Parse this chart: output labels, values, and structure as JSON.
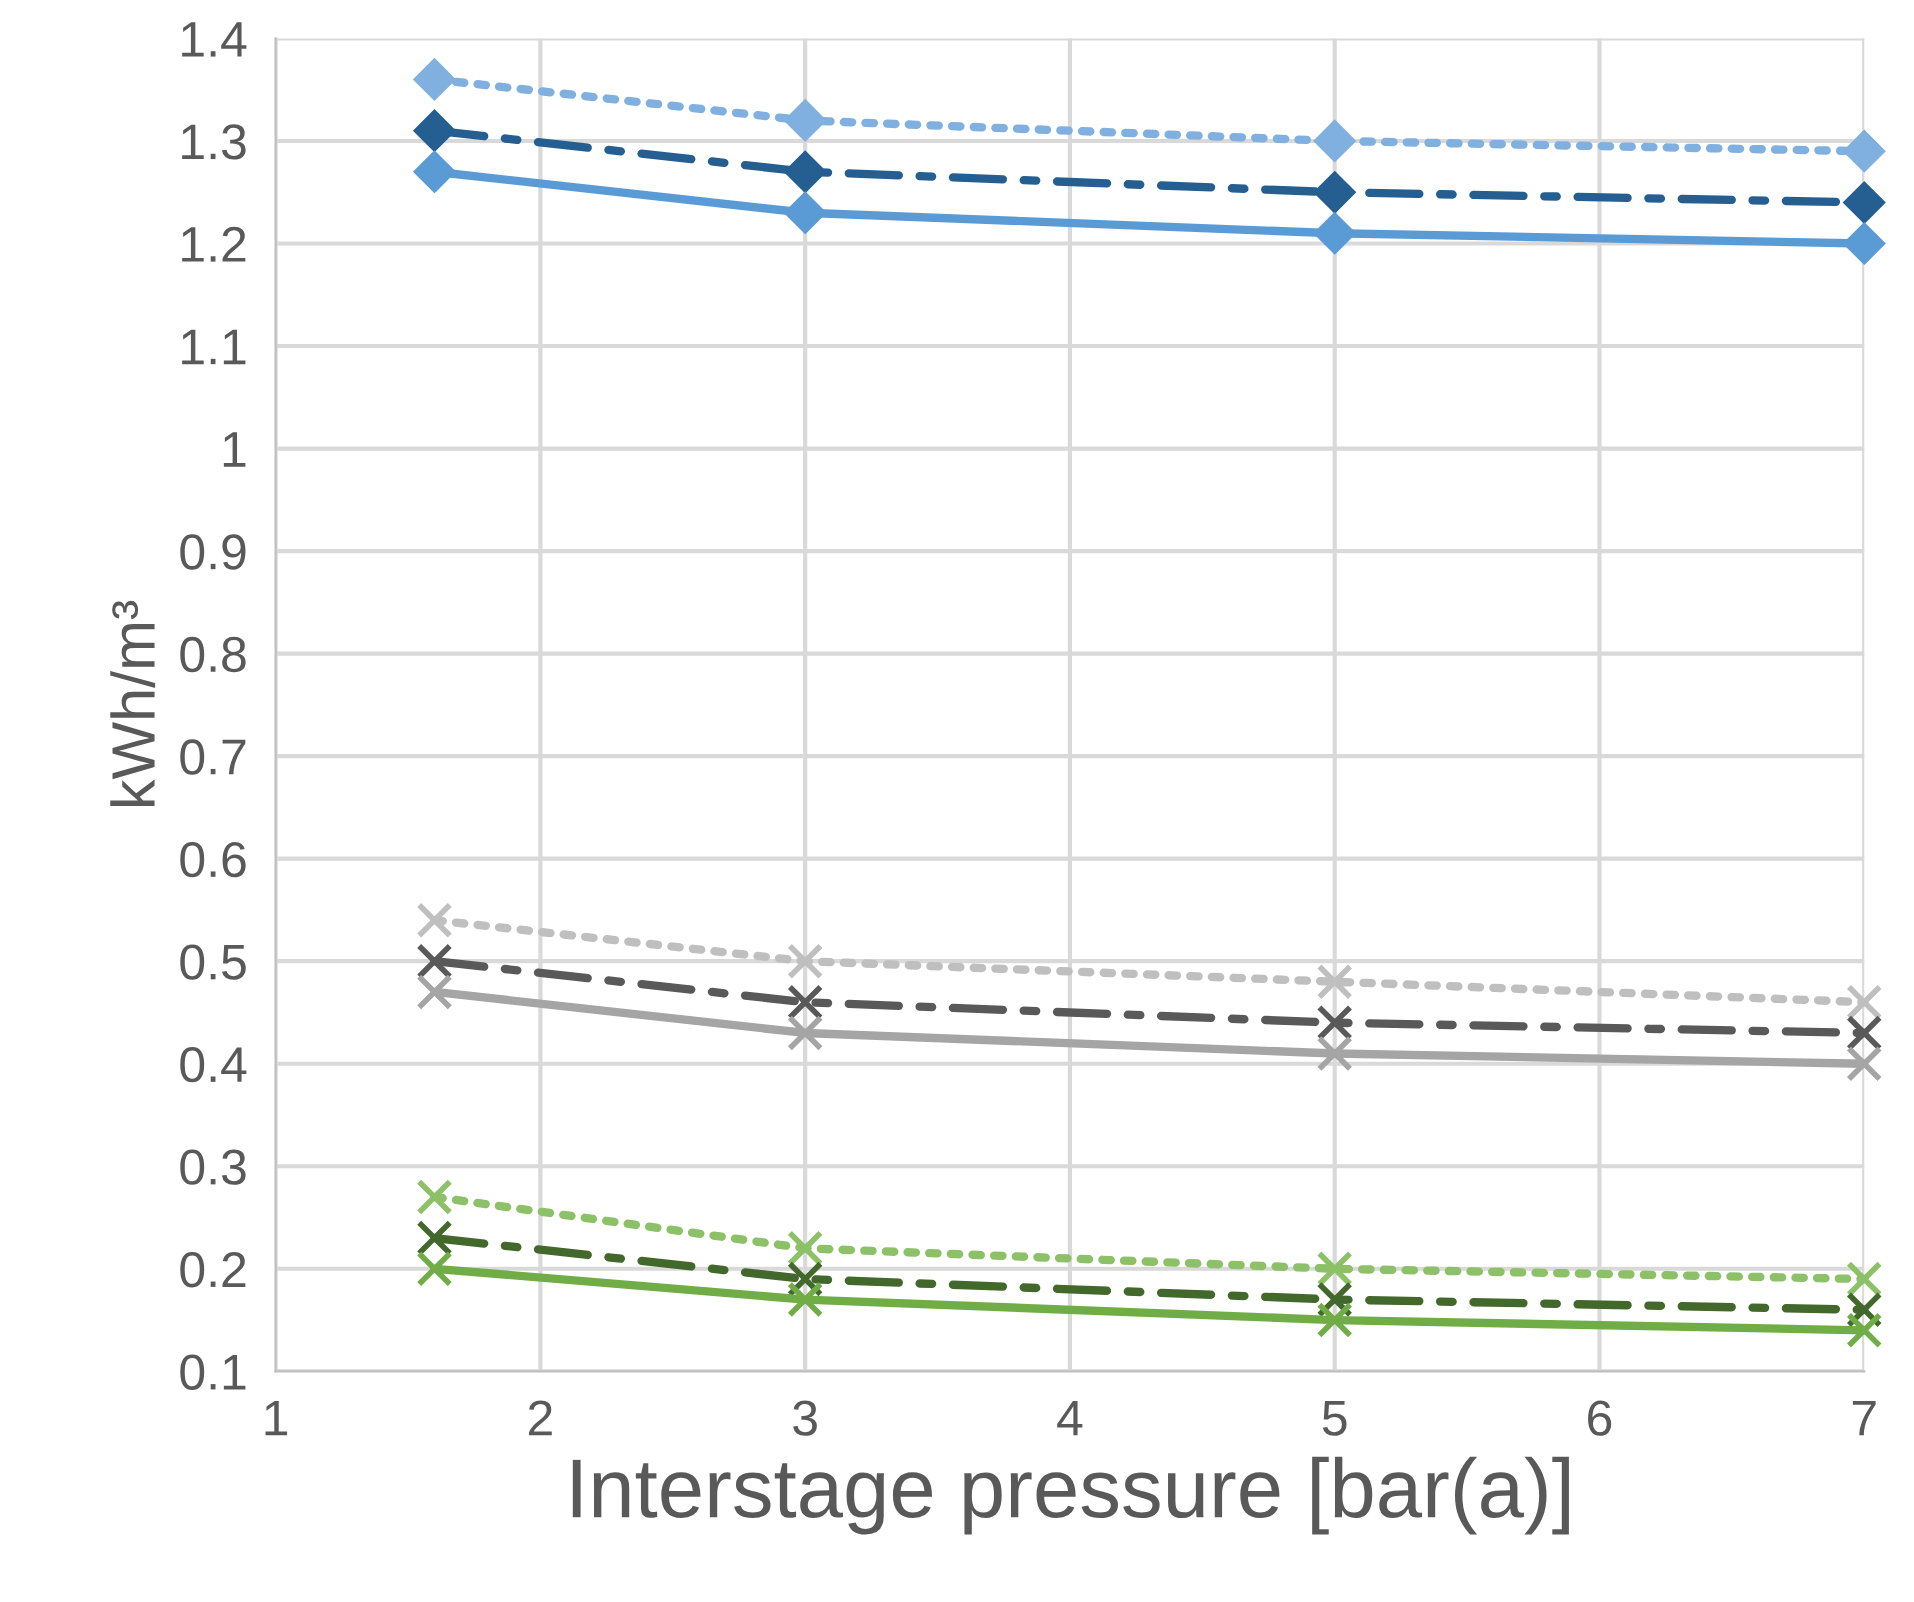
{
  "chart_data": {
    "type": "line",
    "xlabel": "Interstage pressure [bar(a)]",
    "ylabel": "kWh/m³",
    "x": [
      1.6,
      3,
      5,
      7
    ],
    "xlim": [
      1,
      7
    ],
    "xticks": [
      1,
      2,
      3,
      4,
      5,
      6,
      7
    ],
    "ylim": [
      0.1,
      1.4
    ],
    "yticks": [
      0.1,
      0.2,
      0.3,
      0.4,
      0.5,
      0.6,
      0.7,
      0.8,
      0.9,
      {
        "value": 1.0,
        "label": "1"
      },
      1.1,
      1.2,
      1.3,
      1.4
    ],
    "grid": true,
    "legend": false,
    "series": [
      {
        "color": "#7fb0e0",
        "values": [
          1.36,
          1.32,
          1.3,
          1.29
        ],
        "marker": "diamond",
        "line_style": "dotted"
      },
      {
        "color": "#255e91",
        "values": [
          1.31,
          1.27,
          1.25,
          1.24
        ],
        "marker": "diamond",
        "line_style": "dashed"
      },
      {
        "color": "#5b9bd5",
        "values": [
          1.27,
          1.23,
          1.21,
          1.2
        ],
        "marker": "diamond",
        "line_style": "solid"
      },
      {
        "color": "#bfbfbf",
        "values": [
          0.54,
          0.5,
          0.48,
          0.46
        ],
        "marker": "cross",
        "line_style": "dotted"
      },
      {
        "color": "#595959",
        "values": [
          0.5,
          0.46,
          0.44,
          0.43
        ],
        "marker": "cross",
        "line_style": "dashed"
      },
      {
        "color": "#a5a5a5",
        "values": [
          0.47,
          0.43,
          0.41,
          0.4
        ],
        "marker": "cross",
        "line_style": "solid"
      },
      {
        "color": "#8cc168",
        "values": [
          0.27,
          0.22,
          0.2,
          0.19
        ],
        "marker": "cross",
        "line_style": "dotted"
      },
      {
        "color": "#43682b",
        "values": [
          0.23,
          0.19,
          0.17,
          0.16
        ],
        "marker": "cross",
        "line_style": "dashed"
      },
      {
        "color": "#70ad47",
        "values": [
          0.2,
          0.17,
          0.15,
          0.14
        ],
        "marker": "cross",
        "line_style": "solid"
      }
    ]
  }
}
